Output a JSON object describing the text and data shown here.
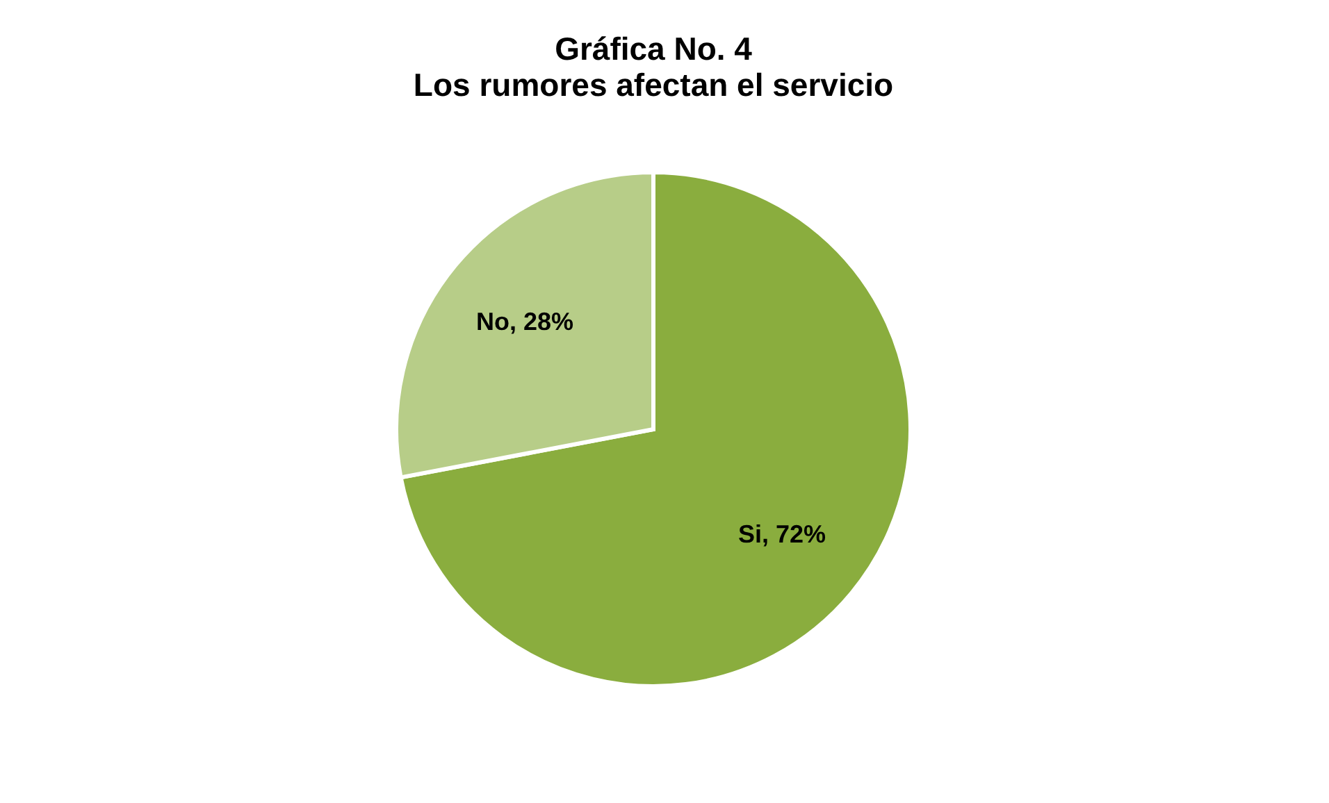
{
  "chart_data": {
    "type": "pie",
    "title": "Gráfica No. 4",
    "subtitle": "Los rumores afectan el servicio",
    "categories": [
      "Si",
      "No"
    ],
    "values": [
      72,
      28
    ],
    "colors": [
      "#8aad3e",
      "#b7cd88"
    ],
    "value_labels": [
      "72%",
      "28%"
    ],
    "legend": false
  }
}
